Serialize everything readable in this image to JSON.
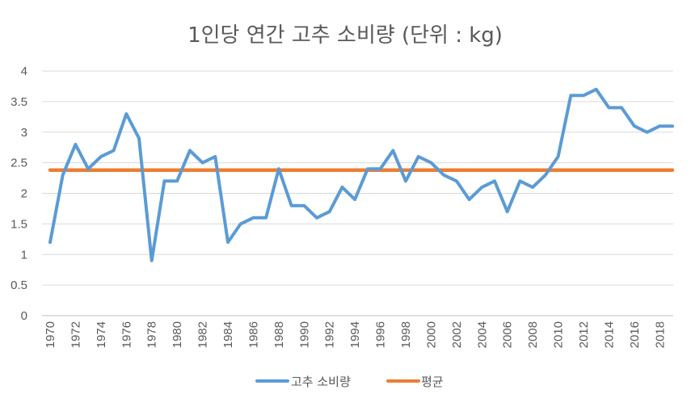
{
  "chart_data": {
    "type": "line",
    "title": "1인당 연간 고추 소비량 (단위 : kg)",
    "xlabel": "",
    "ylabel": "",
    "x": [
      1970,
      1971,
      1972,
      1973,
      1974,
      1975,
      1976,
      1977,
      1978,
      1979,
      1980,
      1981,
      1982,
      1983,
      1984,
      1985,
      1986,
      1987,
      1988,
      1989,
      1990,
      1991,
      1992,
      1993,
      1994,
      1995,
      1996,
      1997,
      1998,
      1999,
      2000,
      2001,
      2002,
      2003,
      2004,
      2005,
      2006,
      2007,
      2008,
      2009,
      2010,
      2011,
      2012,
      2013,
      2014,
      2015,
      2016,
      2017,
      2018,
      2019
    ],
    "x_tick_labels": [
      "1970",
      "1972",
      "1974",
      "1976",
      "1978",
      "1980",
      "1982",
      "1984",
      "1986",
      "1988",
      "1990",
      "1992",
      "1994",
      "1996",
      "1998",
      "2000",
      "2002",
      "2004",
      "2006",
      "2008",
      "2010",
      "2012",
      "2014",
      "2016",
      "2018"
    ],
    "y_tick_labels": [
      "0",
      "0.5",
      "1",
      "1.5",
      "2",
      "2.5",
      "3",
      "3.5",
      "4"
    ],
    "ylim": [
      0,
      4
    ],
    "grid": true,
    "legend_position": "bottom",
    "series": [
      {
        "name": "고추 소비량",
        "color": "#5B9BD5",
        "values": [
          1.2,
          2.3,
          2.8,
          2.4,
          2.6,
          2.7,
          3.3,
          2.9,
          0.9,
          2.2,
          2.2,
          2.7,
          2.5,
          2.6,
          1.2,
          1.5,
          1.6,
          1.6,
          2.4,
          1.8,
          1.8,
          1.6,
          1.7,
          2.1,
          1.9,
          2.4,
          2.4,
          2.7,
          2.2,
          2.6,
          2.5,
          2.3,
          2.2,
          1.9,
          2.1,
          2.2,
          1.7,
          2.2,
          2.1,
          2.3,
          2.6,
          3.6,
          3.6,
          3.7,
          3.4,
          3.4,
          3.1,
          3.0,
          3.1,
          3.1
        ]
      },
      {
        "name": "평균",
        "color": "#ED7D31",
        "values": [
          2.38,
          2.38,
          2.38,
          2.38,
          2.38,
          2.38,
          2.38,
          2.38,
          2.38,
          2.38,
          2.38,
          2.38,
          2.38,
          2.38,
          2.38,
          2.38,
          2.38,
          2.38,
          2.38,
          2.38,
          2.38,
          2.38,
          2.38,
          2.38,
          2.38,
          2.38,
          2.38,
          2.38,
          2.38,
          2.38,
          2.38,
          2.38,
          2.38,
          2.38,
          2.38,
          2.38,
          2.38,
          2.38,
          2.38,
          2.38,
          2.38,
          2.38,
          2.38,
          2.38,
          2.38,
          2.38,
          2.38,
          2.38,
          2.38,
          2.38
        ]
      }
    ]
  }
}
